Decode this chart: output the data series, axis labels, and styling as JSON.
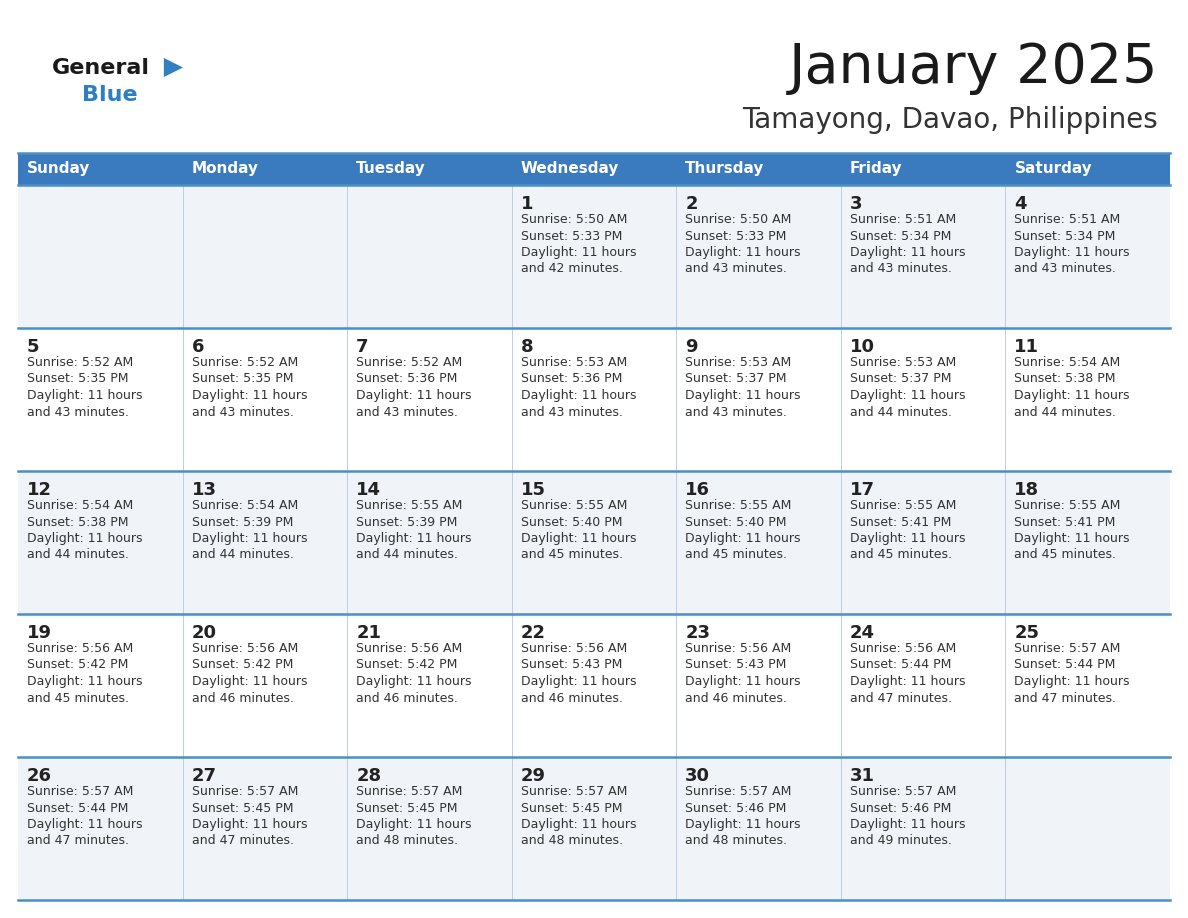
{
  "title": "January 2025",
  "subtitle": "Tamayong, Davao, Philippines",
  "header_bg_color": "#3a7abf",
  "header_text_color": "#ffffff",
  "cell_bg_row0": "#f0f4f8",
  "cell_bg_row1": "#ffffff",
  "day_headers": [
    "Sunday",
    "Monday",
    "Tuesday",
    "Wednesday",
    "Thursday",
    "Friday",
    "Saturday"
  ],
  "title_color": "#1a1a1a",
  "subtitle_color": "#333333",
  "number_color": "#222222",
  "info_color": "#333333",
  "divider_color": "#4a90c4",
  "thin_divider_color": "#b0c8e0",
  "logo_general_color": "#1a1a1a",
  "logo_blue_color": "#2e7fc1",
  "calendar": [
    [
      {
        "day": "",
        "sunrise": "",
        "sunset": "",
        "daylight_h": "",
        "daylight_m": ""
      },
      {
        "day": "",
        "sunrise": "",
        "sunset": "",
        "daylight_h": "",
        "daylight_m": ""
      },
      {
        "day": "",
        "sunrise": "",
        "sunset": "",
        "daylight_h": "",
        "daylight_m": ""
      },
      {
        "day": "1",
        "sunrise": "5:50 AM",
        "sunset": "5:33 PM",
        "daylight_h": "11",
        "daylight_m": "42"
      },
      {
        "day": "2",
        "sunrise": "5:50 AM",
        "sunset": "5:33 PM",
        "daylight_h": "11",
        "daylight_m": "43"
      },
      {
        "day": "3",
        "sunrise": "5:51 AM",
        "sunset": "5:34 PM",
        "daylight_h": "11",
        "daylight_m": "43"
      },
      {
        "day": "4",
        "sunrise": "5:51 AM",
        "sunset": "5:34 PM",
        "daylight_h": "11",
        "daylight_m": "43"
      }
    ],
    [
      {
        "day": "5",
        "sunrise": "5:52 AM",
        "sunset": "5:35 PM",
        "daylight_h": "11",
        "daylight_m": "43"
      },
      {
        "day": "6",
        "sunrise": "5:52 AM",
        "sunset": "5:35 PM",
        "daylight_h": "11",
        "daylight_m": "43"
      },
      {
        "day": "7",
        "sunrise": "5:52 AM",
        "sunset": "5:36 PM",
        "daylight_h": "11",
        "daylight_m": "43"
      },
      {
        "day": "8",
        "sunrise": "5:53 AM",
        "sunset": "5:36 PM",
        "daylight_h": "11",
        "daylight_m": "43"
      },
      {
        "day": "9",
        "sunrise": "5:53 AM",
        "sunset": "5:37 PM",
        "daylight_h": "11",
        "daylight_m": "43"
      },
      {
        "day": "10",
        "sunrise": "5:53 AM",
        "sunset": "5:37 PM",
        "daylight_h": "11",
        "daylight_m": "44"
      },
      {
        "day": "11",
        "sunrise": "5:54 AM",
        "sunset": "5:38 PM",
        "daylight_h": "11",
        "daylight_m": "44"
      }
    ],
    [
      {
        "day": "12",
        "sunrise": "5:54 AM",
        "sunset": "5:38 PM",
        "daylight_h": "11",
        "daylight_m": "44"
      },
      {
        "day": "13",
        "sunrise": "5:54 AM",
        "sunset": "5:39 PM",
        "daylight_h": "11",
        "daylight_m": "44"
      },
      {
        "day": "14",
        "sunrise": "5:55 AM",
        "sunset": "5:39 PM",
        "daylight_h": "11",
        "daylight_m": "44"
      },
      {
        "day": "15",
        "sunrise": "5:55 AM",
        "sunset": "5:40 PM",
        "daylight_h": "11",
        "daylight_m": "45"
      },
      {
        "day": "16",
        "sunrise": "5:55 AM",
        "sunset": "5:40 PM",
        "daylight_h": "11",
        "daylight_m": "45"
      },
      {
        "day": "17",
        "sunrise": "5:55 AM",
        "sunset": "5:41 PM",
        "daylight_h": "11",
        "daylight_m": "45"
      },
      {
        "day": "18",
        "sunrise": "5:55 AM",
        "sunset": "5:41 PM",
        "daylight_h": "11",
        "daylight_m": "45"
      }
    ],
    [
      {
        "day": "19",
        "sunrise": "5:56 AM",
        "sunset": "5:42 PM",
        "daylight_h": "11",
        "daylight_m": "45"
      },
      {
        "day": "20",
        "sunrise": "5:56 AM",
        "sunset": "5:42 PM",
        "daylight_h": "11",
        "daylight_m": "46"
      },
      {
        "day": "21",
        "sunrise": "5:56 AM",
        "sunset": "5:42 PM",
        "daylight_h": "11",
        "daylight_m": "46"
      },
      {
        "day": "22",
        "sunrise": "5:56 AM",
        "sunset": "5:43 PM",
        "daylight_h": "11",
        "daylight_m": "46"
      },
      {
        "day": "23",
        "sunrise": "5:56 AM",
        "sunset": "5:43 PM",
        "daylight_h": "11",
        "daylight_m": "46"
      },
      {
        "day": "24",
        "sunrise": "5:56 AM",
        "sunset": "5:44 PM",
        "daylight_h": "11",
        "daylight_m": "47"
      },
      {
        "day": "25",
        "sunrise": "5:57 AM",
        "sunset": "5:44 PM",
        "daylight_h": "11",
        "daylight_m": "47"
      }
    ],
    [
      {
        "day": "26",
        "sunrise": "5:57 AM",
        "sunset": "5:44 PM",
        "daylight_h": "11",
        "daylight_m": "47"
      },
      {
        "day": "27",
        "sunrise": "5:57 AM",
        "sunset": "5:45 PM",
        "daylight_h": "11",
        "daylight_m": "47"
      },
      {
        "day": "28",
        "sunrise": "5:57 AM",
        "sunset": "5:45 PM",
        "daylight_h": "11",
        "daylight_m": "48"
      },
      {
        "day": "29",
        "sunrise": "5:57 AM",
        "sunset": "5:45 PM",
        "daylight_h": "11",
        "daylight_m": "48"
      },
      {
        "day": "30",
        "sunrise": "5:57 AM",
        "sunset": "5:46 PM",
        "daylight_h": "11",
        "daylight_m": "48"
      },
      {
        "day": "31",
        "sunrise": "5:57 AM",
        "sunset": "5:46 PM",
        "daylight_h": "11",
        "daylight_m": "49"
      },
      {
        "day": "",
        "sunrise": "",
        "sunset": "",
        "daylight_h": "",
        "daylight_m": ""
      }
    ]
  ]
}
